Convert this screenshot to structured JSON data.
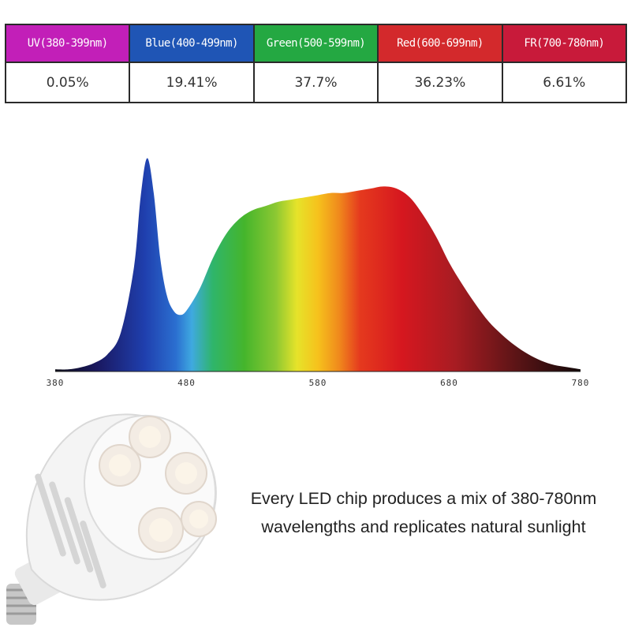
{
  "spectrum_table": {
    "bands": [
      {
        "label": "UV(380-399nm)",
        "value": "0.05%",
        "color": "#c21fb8"
      },
      {
        "label": "Blue(400-499nm)",
        "value": "19.41%",
        "color": "#1f55b5"
      },
      {
        "label": "Green(500-599nm)",
        "value": "37.7%",
        "color": "#24a842"
      },
      {
        "label": "Red(600-699nm)",
        "value": "36.23%",
        "color": "#d3292c"
      },
      {
        "label": "FR(700-780nm)",
        "value": "6.61%",
        "color": "#c81a3a"
      }
    ]
  },
  "chart_data": {
    "type": "area",
    "xlabel": "",
    "ylabel": "",
    "xlim": [
      380,
      780
    ],
    "ylim": [
      0,
      1
    ],
    "x_ticks": [
      "380",
      "480",
      "580",
      "680",
      "780"
    ],
    "grid": false,
    "legend": "none",
    "series": [
      {
        "x": [
          380,
          390,
          400,
          410,
          420,
          430,
          440,
          445,
          450,
          455,
          460,
          465,
          470,
          475,
          480,
          490,
          500,
          510,
          520,
          530,
          540,
          550,
          560,
          570,
          580,
          590,
          600,
          610,
          620,
          630,
          640,
          650,
          660,
          670,
          680,
          690,
          700,
          710,
          720,
          730,
          740,
          750,
          760,
          770,
          780
        ],
        "values": [
          0.01,
          0.01,
          0.02,
          0.04,
          0.08,
          0.18,
          0.48,
          0.8,
          0.98,
          0.82,
          0.52,
          0.35,
          0.28,
          0.26,
          0.28,
          0.38,
          0.52,
          0.63,
          0.7,
          0.74,
          0.76,
          0.78,
          0.79,
          0.8,
          0.81,
          0.82,
          0.82,
          0.83,
          0.84,
          0.85,
          0.84,
          0.8,
          0.72,
          0.62,
          0.5,
          0.4,
          0.31,
          0.23,
          0.17,
          0.12,
          0.08,
          0.05,
          0.03,
          0.02,
          0.01
        ]
      }
    ]
  },
  "caption": {
    "line1": "Every LED chip produces a mix of 380-780nm",
    "line2": "wavelengths and replicates natural sunlight"
  },
  "illustration": {
    "icon": "led-grow-bulb-icon"
  }
}
